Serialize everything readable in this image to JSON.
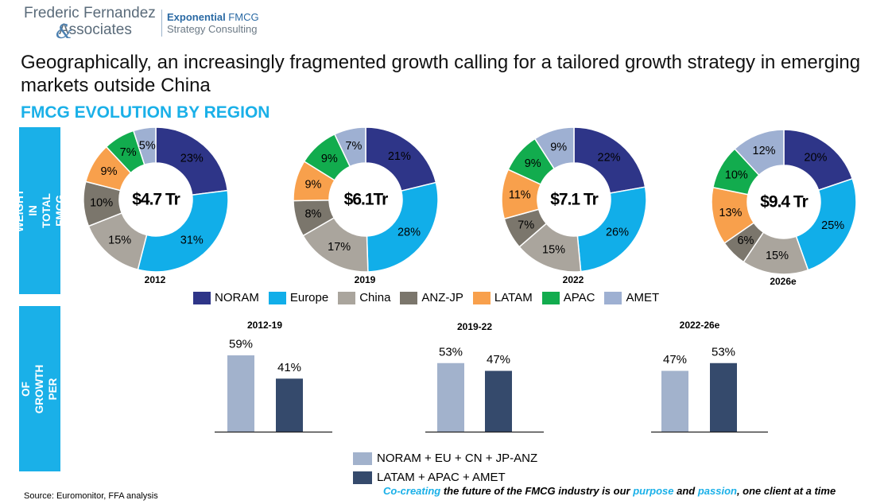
{
  "logo": {
    "line1": "Frederic Fernandez",
    "amp": "&",
    "line2": "Associates",
    "brand_bold": "Exponential",
    "brand_rest": " FMCG",
    "brand_sub": "Strategy Consulting"
  },
  "headline": "Geographically, an increasingly fragmented growth calling for a tailored growth strategy in emerging markets outside China",
  "subtitle": "FMCG EVOLUTION BY REGION",
  "side_label_1": "REGION WEIGHT IN TOTAL FMCG MARKET",
  "side_label_2": "SHARE OF GROWTH PER REGION",
  "colors": {
    "NORAM": "#2e3588",
    "Europe": "#11aee9",
    "China": "#aaa59d",
    "ANZ-JP": "#7b766c",
    "LATAM": "#f8a04c",
    "APAC": "#12ac4e",
    "AMET": "#9eb0d2",
    "mature": "#a2b2cc",
    "emerging": "#354a6c",
    "accent": "#1ab0e8"
  },
  "chart_data": [
    {
      "type": "pie",
      "title": "2012",
      "center_label": "$4.7 Tr",
      "categories": [
        "NORAM",
        "Europe",
        "China",
        "ANZ-JP",
        "LATAM",
        "APAC",
        "AMET"
      ],
      "values": [
        23,
        31,
        15,
        10,
        9,
        7,
        5
      ],
      "labels": [
        "23%",
        "31%",
        "15%",
        "10%",
        "9%",
        "7%",
        "5%"
      ]
    },
    {
      "type": "pie",
      "title": "2019",
      "center_label": "$6.1Tr",
      "categories": [
        "NORAM",
        "Europe",
        "China",
        "ANZ-JP",
        "LATAM",
        "APAC",
        "AMET"
      ],
      "values": [
        21,
        28,
        17,
        8,
        9,
        9,
        7
      ],
      "labels": [
        "21%",
        "28%",
        "17%",
        "8%",
        "9%",
        "9%",
        "7%"
      ]
    },
    {
      "type": "pie",
      "title": "2022",
      "center_label": "$7.1 Tr",
      "categories": [
        "NORAM",
        "Europe",
        "China",
        "ANZ-JP",
        "LATAM",
        "APAC",
        "AMET"
      ],
      "values": [
        22,
        26,
        15,
        7,
        11,
        9,
        9
      ],
      "labels": [
        "22%",
        "26%",
        "15%",
        "7%",
        "11%",
        "9%",
        "9%"
      ]
    },
    {
      "type": "pie",
      "title": "2026e",
      "center_label": "$9.4 Tr",
      "categories": [
        "NORAM",
        "Europe",
        "China",
        "ANZ-JP",
        "LATAM",
        "APAC",
        "AMET"
      ],
      "values": [
        20,
        25,
        15,
        6,
        13,
        10,
        12
      ],
      "labels": [
        "20%",
        "25%",
        "15%",
        "6%",
        "13%",
        "10%",
        "12%"
      ]
    },
    {
      "type": "bar",
      "title": "2012-19",
      "categories": [
        "NORAM + EU + CN + JP-ANZ",
        "LATAM + APAC + AMET"
      ],
      "values": [
        59,
        41
      ],
      "labels": [
        "59%",
        "41%"
      ]
    },
    {
      "type": "bar",
      "title": "2019-22",
      "categories": [
        "NORAM + EU + CN + JP-ANZ",
        "LATAM + APAC + AMET"
      ],
      "values": [
        53,
        47
      ],
      "labels": [
        "53%",
        "47%"
      ]
    },
    {
      "type": "bar",
      "title": "2022-26e",
      "categories": [
        "NORAM + EU + CN + JP-ANZ",
        "LATAM + APAC + AMET"
      ],
      "values": [
        47,
        53
      ],
      "labels": [
        "47%",
        "53%"
      ]
    }
  ],
  "legend_regions": [
    "NORAM",
    "Europe",
    "China",
    "ANZ-JP",
    "LATAM",
    "APAC",
    "AMET"
  ],
  "legend_groups": [
    "NORAM + EU + CN + JP-ANZ",
    "LATAM + APAC + AMET"
  ],
  "source": "Source: Euromonitor, FFA analysis",
  "tagline": {
    "p1": "Co-creating",
    "p2": " the future of the FMCG industry is our ",
    "p3": "purpose",
    "p4": " and ",
    "p5": "passion",
    "p6": ", one client at a time"
  }
}
